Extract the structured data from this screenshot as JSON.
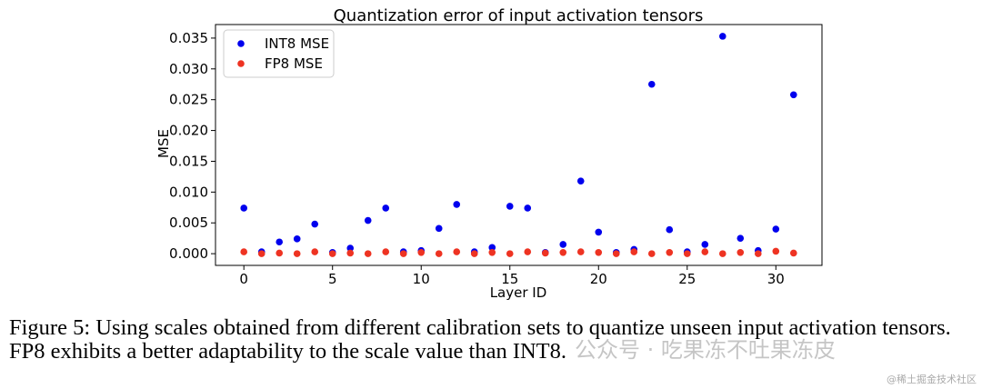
{
  "chart_data": {
    "type": "scatter",
    "title": "Quantization error of input activation tensors",
    "xlabel": "Layer ID",
    "ylabel": "MSE",
    "xlim": [
      -1.6,
      32.6
    ],
    "ylim": [
      -0.0019,
      0.0372
    ],
    "xticks": [
      0,
      5,
      10,
      15,
      20,
      25,
      30
    ],
    "xtick_labels": [
      "0",
      "5",
      "10",
      "15",
      "20",
      "25",
      "30"
    ],
    "yticks": [
      0.0,
      0.005,
      0.01,
      0.015,
      0.02,
      0.025,
      0.03,
      0.035
    ],
    "ytick_labels": [
      "0.000",
      "0.005",
      "0.010",
      "0.015",
      "0.020",
      "0.025",
      "0.030",
      "0.035"
    ],
    "grid": false,
    "legend_position": "top-left",
    "x": [
      0,
      1,
      2,
      3,
      4,
      5,
      6,
      7,
      8,
      9,
      10,
      11,
      12,
      13,
      14,
      15,
      16,
      17,
      18,
      19,
      20,
      21,
      22,
      23,
      24,
      25,
      26,
      27,
      28,
      29,
      30,
      31
    ],
    "series": [
      {
        "name": "INT8 MSE",
        "color": "#0000ee",
        "values": [
          0.0074,
          0.0003,
          0.0019,
          0.0024,
          0.0048,
          0.0002,
          0.0009,
          0.0054,
          0.0074,
          0.0003,
          0.0005,
          0.0041,
          0.008,
          0.0003,
          0.001,
          0.0077,
          0.0074,
          0.0002,
          0.0015,
          0.0118,
          0.0035,
          0.0002,
          0.0007,
          0.0275,
          0.0039,
          0.0003,
          0.0015,
          0.0353,
          0.0025,
          0.0005,
          0.004,
          0.0258
        ]
      },
      {
        "name": "FP8 MSE",
        "color": "#ee3322",
        "values": [
          0.0003,
          0.0,
          0.0001,
          0.0,
          0.0003,
          0.0,
          0.0001,
          0.0,
          0.0003,
          0.0,
          0.0002,
          0.0,
          0.0003,
          0.0,
          0.0002,
          0.0,
          0.0003,
          0.0001,
          0.0002,
          0.0003,
          0.0002,
          0.0,
          0.0003,
          0.0,
          0.0002,
          0.0,
          0.0003,
          0.0,
          0.0002,
          0.0,
          0.0004,
          0.0001
        ]
      }
    ]
  },
  "caption": "Figure 5: Using scales obtained from different calibration sets to quantize unseen input activation tensors. FP8 exhibits a better adaptability to the scale value than INT8.",
  "watermark": "公众号 · 吃果冻不吐果冻皮",
  "credit": "@稀土掘金技术社区"
}
